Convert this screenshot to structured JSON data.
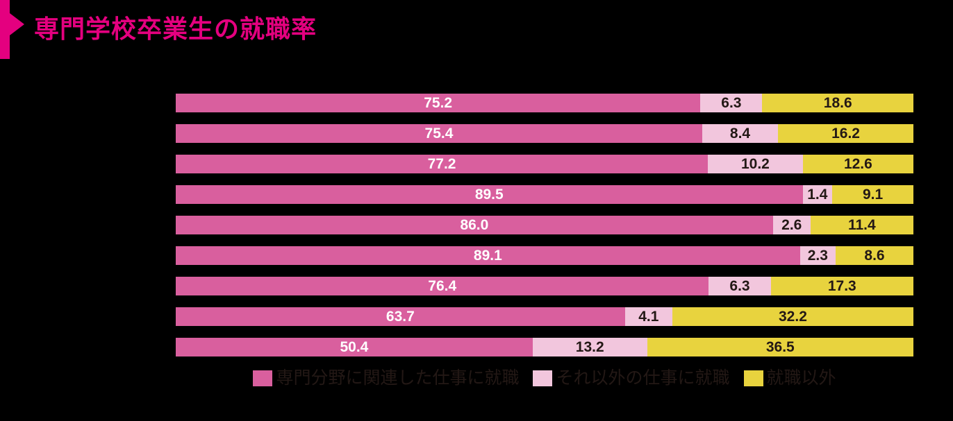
{
  "title": "専門学校卒業生の就職率",
  "colors": {
    "background": "#000000",
    "title_accent": "#e4007f",
    "related_job": "#d95f9e",
    "other_job": "#f2c6dd",
    "not_employed": "#e8d33e",
    "value_on_dark_segment": "#ffffff",
    "value_on_light_segment": "#231815"
  },
  "chart_data": {
    "type": "bar",
    "orientation": "horizontal",
    "stacked": true,
    "unit": "%",
    "x_range": [
      0,
      100
    ],
    "num_rows": 9,
    "title": "専門学校卒業生の就職率",
    "legend_position": "bottom-center",
    "series": [
      {
        "name": "専門分野に関連した仕事に就職",
        "color": "#d95f9e",
        "values": [
          75.2,
          75.4,
          77.2,
          89.5,
          86.0,
          89.1,
          76.4,
          63.7,
          50.4
        ]
      },
      {
        "name": "それ以外の仕事に就職",
        "color": "#f2c6dd",
        "values": [
          6.3,
          8.4,
          10.2,
          1.4,
          2.6,
          2.3,
          6.3,
          4.1,
          13.2
        ]
      },
      {
        "name": "就職以外",
        "color": "#e8d33e",
        "values": [
          18.6,
          16.2,
          12.6,
          9.1,
          11.4,
          8.6,
          17.3,
          32.2,
          36.5
        ]
      }
    ]
  },
  "legend": {
    "items": [
      {
        "label": "専門分野に関連した仕事に就職",
        "color": "#d95f9e"
      },
      {
        "label": "それ以外の仕事に就職",
        "color": "#f2c6dd"
      },
      {
        "label": "就職以外",
        "color": "#e8d33e"
      }
    ]
  }
}
